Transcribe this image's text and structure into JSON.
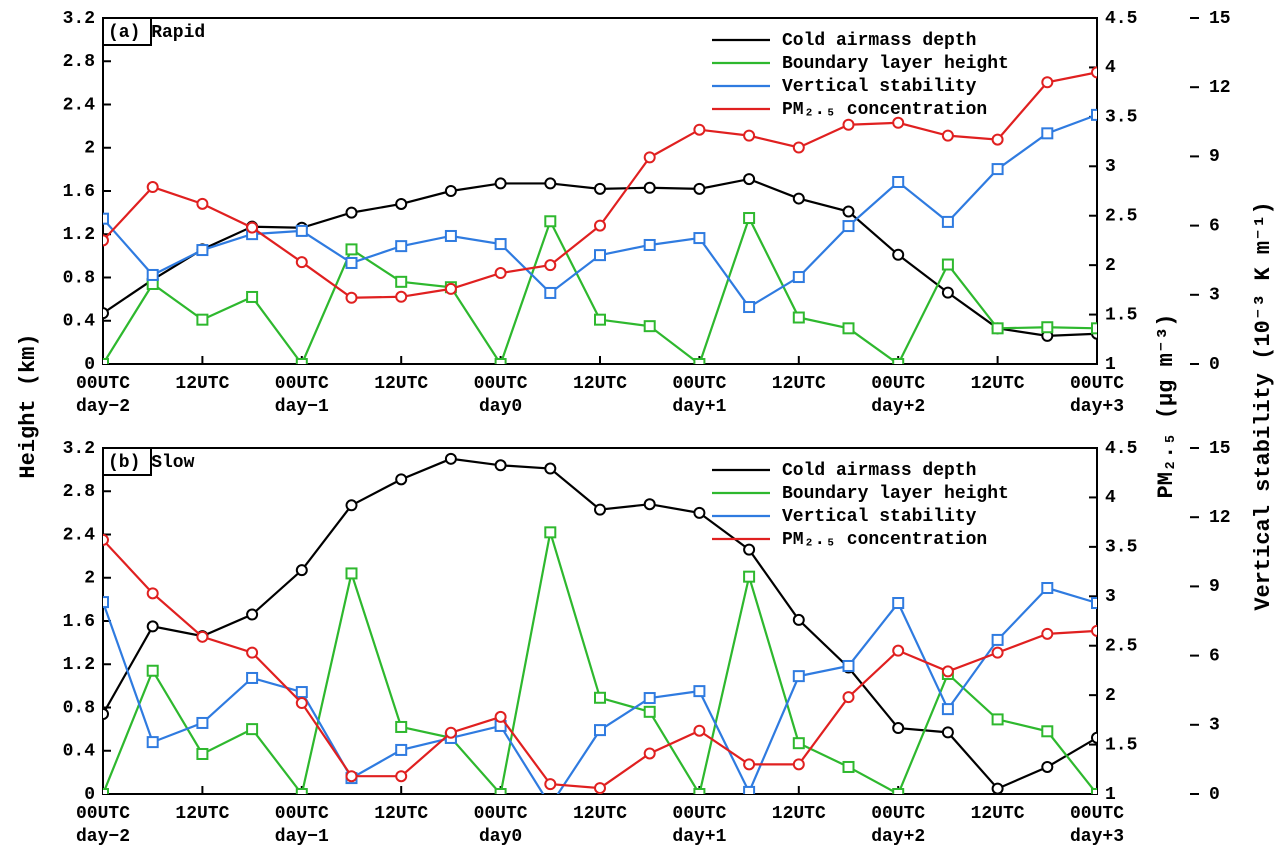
{
  "chart_data": [
    {
      "type": "line",
      "title": "(a) Rapid",
      "ylabel": "Height (km)",
      "y2label": "PM₂.₅ (μg m⁻³)",
      "y3label": "Vertical stability (10⁻³ K m⁻¹)",
      "categories": [
        "00UTC\nday−2",
        null,
        "12UTC",
        null,
        "00UTC\nday−1",
        null,
        "12UTC",
        null,
        "00UTC\nday0",
        null,
        "12UTC",
        null,
        "00UTC\nday+1",
        null,
        "12UTC",
        null,
        "00UTC\nday+2",
        null,
        "12UTC",
        null,
        "00UTC\nday+3"
      ],
      "ylim": [
        0,
        3.2
      ],
      "yticks": [
        0,
        0.4,
        0.8,
        1.2,
        1.6,
        2,
        2.4,
        2.8,
        3.2
      ],
      "y2lim": [
        1,
        4.5
      ],
      "y2ticks": [
        1,
        1.5,
        2,
        2.5,
        3,
        3.5,
        4,
        4.5
      ],
      "y3lim": [
        0,
        15
      ],
      "y3ticks": [
        0,
        3,
        6,
        9,
        12,
        15
      ],
      "legend": "upper right",
      "series": [
        {
          "name": "Cold airmass depth",
          "color": "#000000",
          "marker": "circle",
          "axis": "y",
          "values": [
            0.47,
            0.78,
            1.06,
            1.27,
            1.26,
            1.4,
            1.48,
            1.6,
            1.67,
            1.67,
            1.62,
            1.63,
            1.62,
            1.71,
            1.53,
            1.41,
            1.01,
            0.66,
            0.33,
            0.26,
            0.28
          ]
        },
        {
          "name": "Boundary layer height",
          "color": "#2eb82e",
          "marker": "square",
          "axis": "y",
          "values": [
            0,
            0.74,
            0.41,
            0.62,
            0,
            1.06,
            0.76,
            0.71,
            0,
            1.32,
            0.41,
            0.35,
            0,
            1.35,
            0.43,
            0.33,
            0,
            0.92,
            0.33,
            0.34,
            0.33
          ]
        },
        {
          "name": "Vertical stability",
          "color": "#2f7be0",
          "marker": "square",
          "axis": "y3",
          "values": [
            6.3,
            3.86,
            4.94,
            5.63,
            5.77,
            4.38,
            5.11,
            5.55,
            5.2,
            3.08,
            4.72,
            5.16,
            5.46,
            2.47,
            3.77,
            5.98,
            7.89,
            6.16,
            8.45,
            10.0,
            10.8
          ]
        },
        {
          "name": "PM₂.₅ concentration",
          "color": "#e02020",
          "marker": "circle",
          "axis": "y2",
          "values": [
            2.25,
            2.79,
            2.62,
            2.38,
            2.03,
            1.67,
            1.68,
            1.76,
            1.92,
            2.0,
            2.4,
            3.09,
            3.37,
            3.31,
            3.19,
            3.42,
            3.44,
            3.31,
            3.27,
            3.85,
            3.95
          ]
        }
      ]
    },
    {
      "type": "line",
      "title": "(b) Slow",
      "categories": [
        "00UTC\nday−2",
        null,
        "12UTC",
        null,
        "00UTC\nday−1",
        null,
        "12UTC",
        null,
        "00UTC\nday0",
        null,
        "12UTC",
        null,
        "00UTC\nday+1",
        null,
        "12UTC",
        null,
        "00UTC\nday+2",
        null,
        "12UTC",
        null,
        "00UTC\nday+3"
      ],
      "ylim": [
        0,
        3.2
      ],
      "yticks": [
        0,
        0.4,
        0.8,
        1.2,
        1.6,
        2,
        2.4,
        2.8,
        3.2
      ],
      "y2lim": [
        1,
        4.5
      ],
      "y2ticks": [
        1,
        1.5,
        2,
        2.5,
        3,
        3.5,
        4,
        4.5
      ],
      "y3lim": [
        0,
        15
      ],
      "y3ticks": [
        0,
        3,
        6,
        9,
        12,
        15
      ],
      "legend": "upper right",
      "series": [
        {
          "name": "Cold airmass depth",
          "color": "#000000",
          "marker": "circle",
          "axis": "y",
          "values": [
            0.74,
            1.55,
            1.46,
            1.66,
            2.07,
            2.67,
            2.91,
            3.1,
            3.04,
            3.01,
            2.63,
            2.68,
            2.6,
            2.26,
            1.61,
            1.17,
            0.61,
            0.57,
            0.05,
            0.25,
            0.52
          ]
        },
        {
          "name": "Boundary layer height",
          "color": "#2eb82e",
          "marker": "square",
          "axis": "y",
          "values": [
            0,
            1.14,
            0.37,
            0.6,
            0,
            2.04,
            0.62,
            0.52,
            0,
            2.42,
            0.89,
            0.76,
            0,
            2.01,
            0.47,
            0.25,
            0,
            1.11,
            0.69,
            0.58,
            0
          ]
        },
        {
          "name": "Vertical stability",
          "color": "#2f7be0",
          "marker": "square",
          "axis": "y3",
          "values": [
            8.32,
            2.25,
            3.08,
            5.03,
            4.42,
            0.69,
            1.91,
            2.43,
            2.95,
            -0.5,
            2.77,
            4.16,
            4.46,
            0.09,
            5.11,
            5.55,
            8.28,
            3.68,
            6.68,
            8.93,
            8.28
          ]
        },
        {
          "name": "PM₂.₅ concentration",
          "color": "#e02020",
          "marker": "circle",
          "axis": "y2",
          "values": [
            3.57,
            3.03,
            2.59,
            2.43,
            1.92,
            1.18,
            1.18,
            1.62,
            1.78,
            1.1,
            1.06,
            1.41,
            1.64,
            1.3,
            1.3,
            1.98,
            2.45,
            2.24,
            2.43,
            2.62,
            2.65
          ]
        }
      ]
    }
  ]
}
